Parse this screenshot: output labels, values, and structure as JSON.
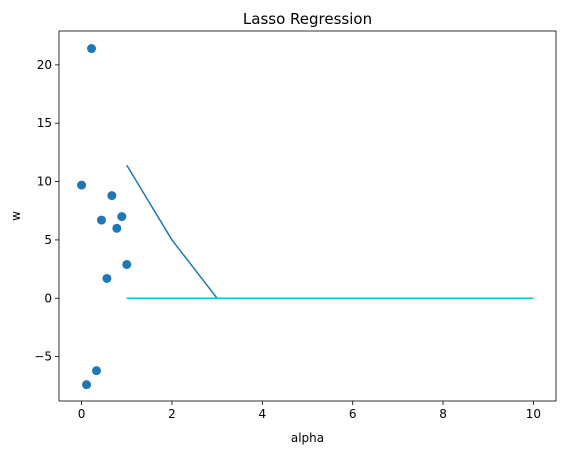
{
  "chart_data": {
    "type": "scatter",
    "title": "Lasso Regression",
    "xlabel": "alpha",
    "ylabel": "w",
    "xlim": [
      -0.5,
      10.5
    ],
    "ylim": [
      -8.8,
      22.9
    ],
    "x_ticks": [
      {
        "value": 0,
        "label": "0"
      },
      {
        "value": 2,
        "label": "2"
      },
      {
        "value": 4,
        "label": "4"
      },
      {
        "value": 6,
        "label": "6"
      },
      {
        "value": 8,
        "label": "8"
      },
      {
        "value": 10,
        "label": "10"
      }
    ],
    "y_ticks": [
      {
        "value": -5,
        "label": "−5"
      },
      {
        "value": 0,
        "label": "0"
      },
      {
        "value": 5,
        "label": "5"
      },
      {
        "value": 10,
        "label": "10"
      },
      {
        "value": 15,
        "label": "15"
      },
      {
        "value": 20,
        "label": "20"
      }
    ],
    "grid": false,
    "scatter": {
      "color": "#1f77b4",
      "points": [
        {
          "x": 0.0,
          "y": 9.7
        },
        {
          "x": 0.11,
          "y": -7.4
        },
        {
          "x": 0.22,
          "y": 21.4
        },
        {
          "x": 0.33,
          "y": -6.2
        },
        {
          "x": 0.44,
          "y": 6.7
        },
        {
          "x": 0.56,
          "y": 1.7
        },
        {
          "x": 0.67,
          "y": 8.8
        },
        {
          "x": 0.78,
          "y": 6.0
        },
        {
          "x": 0.89,
          "y": 7.0
        },
        {
          "x": 1.0,
          "y": 2.9
        }
      ]
    },
    "lines": [
      {
        "color": "#1f77b4",
        "x": [
          1,
          2,
          3,
          4,
          5,
          6,
          7,
          8,
          9,
          10
        ],
        "y": [
          11.4,
          5.0,
          0.0,
          0.0,
          0.0,
          0.0,
          0.0,
          0.0,
          0.0,
          0.0
        ]
      },
      {
        "color": "#ff7f0e",
        "x": [
          1,
          2,
          3,
          4,
          5,
          6,
          7,
          8,
          9,
          10
        ],
        "y": [
          0,
          0,
          0,
          0,
          0,
          0,
          0,
          0,
          0,
          0
        ]
      },
      {
        "color": "#2ca02c",
        "x": [
          1,
          2,
          3,
          4,
          5,
          6,
          7,
          8,
          9,
          10
        ],
        "y": [
          0,
          0,
          0,
          0,
          0,
          0,
          0,
          0,
          0,
          0
        ]
      },
      {
        "color": "#d62728",
        "x": [
          1,
          2,
          3,
          4,
          5,
          6,
          7,
          8,
          9,
          10
        ],
        "y": [
          0,
          0,
          0,
          0,
          0,
          0,
          0,
          0,
          0,
          0
        ]
      },
      {
        "color": "#9467bd",
        "x": [
          1,
          2,
          3,
          4,
          5,
          6,
          7,
          8,
          9,
          10
        ],
        "y": [
          0,
          0,
          0,
          0,
          0,
          0,
          0,
          0,
          0,
          0
        ]
      },
      {
        "color": "#8c564b",
        "x": [
          1,
          2,
          3,
          4,
          5,
          6,
          7,
          8,
          9,
          10
        ],
        "y": [
          0,
          0,
          0,
          0,
          0,
          0,
          0,
          0,
          0,
          0
        ]
      },
      {
        "color": "#e377c2",
        "x": [
          1,
          2,
          3,
          4,
          5,
          6,
          7,
          8,
          9,
          10
        ],
        "y": [
          0,
          0,
          0,
          0,
          0,
          0,
          0,
          0,
          0,
          0
        ]
      },
      {
        "color": "#7f7f7f",
        "x": [
          1,
          2,
          3,
          4,
          5,
          6,
          7,
          8,
          9,
          10
        ],
        "y": [
          0,
          0,
          0,
          0,
          0,
          0,
          0,
          0,
          0,
          0
        ]
      },
      {
        "color": "#bcbd22",
        "x": [
          1,
          2,
          3,
          4,
          5,
          6,
          7,
          8,
          9,
          10
        ],
        "y": [
          0,
          0,
          0,
          0,
          0,
          0,
          0,
          0,
          0,
          0
        ]
      },
      {
        "color": "#17becf",
        "x": [
          1,
          2,
          3,
          4,
          5,
          6,
          7,
          8,
          9,
          10
        ],
        "y": [
          0,
          0,
          0,
          0,
          0,
          0,
          0,
          0,
          0,
          0
        ]
      }
    ]
  }
}
